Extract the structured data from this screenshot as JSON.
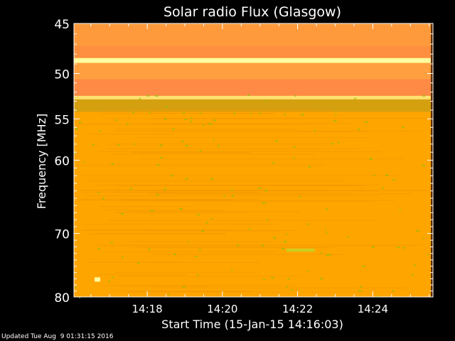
{
  "chart_data": {
    "type": "heatmap",
    "title": "Solar radio Flux (Glasgow)",
    "xlabel": "Start Time (15-Jan-15 14:16:03)",
    "ylabel": "Frequency [MHz]",
    "x_tick_labels": [
      "14:18",
      "14:20",
      "14:22",
      "14:24"
    ],
    "x_ticks_minutes": [
      18,
      20,
      22,
      24
    ],
    "xlim_minutes": [
      16.05,
      25.6
    ],
    "y_tick_labels": [
      "45",
      "50",
      "55",
      "60",
      "70",
      "80"
    ],
    "y_ticks_mhz": [
      45,
      50,
      55,
      60,
      70,
      80
    ],
    "ylim_mhz": [
      45,
      80
    ],
    "y_scale": "log",
    "y_direction": "increasing-downward",
    "background_level_color": "#ffa500",
    "bands": [
      {
        "mhz_from": 45,
        "mhz_to": 47.2,
        "color": "#ff9a3c"
      },
      {
        "mhz_from": 47.2,
        "mhz_to": 48.4,
        "color": "#ff8f40"
      },
      {
        "mhz_from": 48.4,
        "mhz_to": 48.9,
        "color": "#ffffa0"
      },
      {
        "mhz_from": 48.9,
        "mhz_to": 50.6,
        "color": "#ff9f40"
      },
      {
        "mhz_from": 50.6,
        "mhz_to": 52.4,
        "color": "#ff8a45"
      },
      {
        "mhz_from": 52.4,
        "mhz_to": 52.8,
        "color": "#ffe070"
      },
      {
        "mhz_from": 52.8,
        "mhz_to": 54.2,
        "color": "#d4a010"
      },
      {
        "mhz_from": 54.2,
        "mhz_to": 80,
        "color": "#ffa500"
      }
    ],
    "features": [
      {
        "kind": "drifting-line",
        "minute_from": 21.7,
        "minute_to": 22.45,
        "mhz": 72.5,
        "color": "#c8d020"
      },
      {
        "kind": "burst",
        "minute_from": 16.6,
        "minute_to": 16.75,
        "mhz": 77.0,
        "color": "#ffffa0"
      }
    ],
    "colors": {
      "frame": "#ffffff",
      "background": "#000000",
      "low_level_marks": "#8fbf00"
    }
  },
  "footer": {
    "updated_text": "Updated Tue Aug  9 01:31:15 2016"
  }
}
